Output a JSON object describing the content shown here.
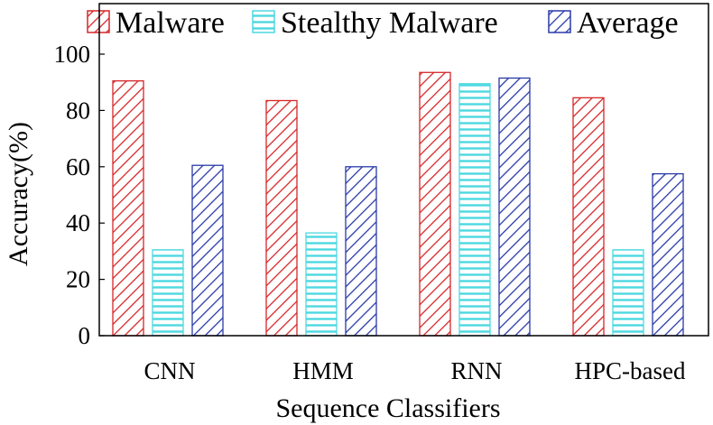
{
  "chart_data": {
    "type": "bar",
    "title": "",
    "xlabel": "Sequence Classifiers",
    "ylabel": "Accuracy(%)",
    "ylim": [
      0,
      100
    ],
    "yticks": [
      "0",
      "20",
      "40",
      "60",
      "80",
      "100"
    ],
    "categories": [
      "CNN",
      "HMM",
      "RNN",
      "HPC-based"
    ],
    "legend_position": "top",
    "grid": false,
    "series": [
      {
        "name": "Malware",
        "values": [
          90.5,
          83.5,
          93.5,
          84.5
        ],
        "color": "#d62728",
        "pattern": "diagonal"
      },
      {
        "name": "Stealthy Malware",
        "values": [
          30.5,
          36.5,
          89.5,
          30.5
        ],
        "color": "#4dd8e0",
        "pattern": "horizontal"
      },
      {
        "name": "Average",
        "values": [
          60.5,
          60,
          91.5,
          57.5
        ],
        "color": "#2a3aa8",
        "pattern": "diagonal"
      }
    ]
  }
}
